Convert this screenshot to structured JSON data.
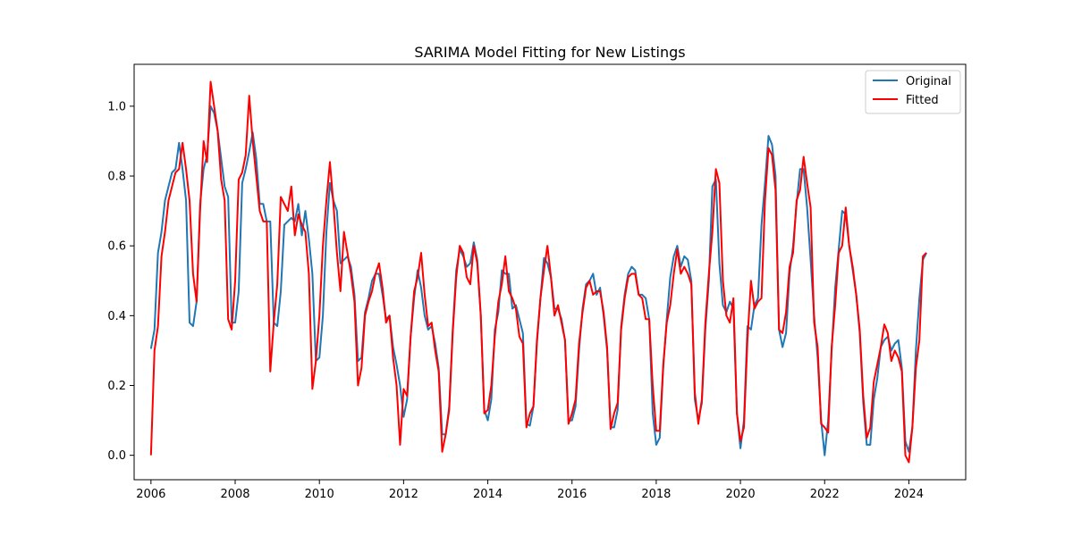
{
  "chart_data": {
    "type": "line",
    "title": "SARIMA Model Fitting for New Listings",
    "xlabel": "",
    "ylabel": "",
    "x_start": "2006-01",
    "x_end": "2024-06",
    "xlim": [
      2005.6,
      2025.35
    ],
    "ylim": [
      -0.07,
      1.12
    ],
    "x_ticks": [
      2006,
      2008,
      2010,
      2012,
      2014,
      2016,
      2018,
      2020,
      2022,
      2024
    ],
    "x_tick_labels": [
      "2006",
      "2008",
      "2010",
      "2012",
      "2014",
      "2016",
      "2018",
      "2020",
      "2022",
      "2024"
    ],
    "y_ticks": [
      0.0,
      0.2,
      0.4,
      0.6,
      0.8,
      1.0
    ],
    "y_tick_labels": [
      "0.0",
      "0.2",
      "0.4",
      "0.6",
      "0.8",
      "1.0"
    ],
    "grid": false,
    "legend_position": "top-right",
    "series": [
      {
        "name": "Original",
        "color": "#1f77b4",
        "values": [
          0.305,
          0.36,
          0.58,
          0.64,
          0.73,
          0.77,
          0.81,
          0.82,
          0.895,
          0.82,
          0.73,
          0.38,
          0.37,
          0.44,
          0.72,
          0.82,
          0.86,
          1.0,
          0.98,
          0.93,
          0.85,
          0.77,
          0.74,
          0.38,
          0.38,
          0.47,
          0.78,
          0.82,
          0.87,
          0.925,
          0.85,
          0.72,
          0.72,
          0.67,
          0.67,
          0.38,
          0.37,
          0.47,
          0.66,
          0.67,
          0.68,
          0.67,
          0.72,
          0.63,
          0.7,
          0.62,
          0.52,
          0.27,
          0.28,
          0.4,
          0.64,
          0.78,
          0.73,
          0.7,
          0.55,
          0.56,
          0.57,
          0.54,
          0.46,
          0.27,
          0.28,
          0.41,
          0.45,
          0.5,
          0.52,
          0.52,
          0.46,
          0.39,
          0.4,
          0.31,
          0.26,
          0.2,
          0.11,
          0.16,
          0.34,
          0.45,
          0.53,
          0.48,
          0.4,
          0.36,
          0.37,
          0.32,
          0.25,
          0.06,
          0.06,
          0.14,
          0.36,
          0.53,
          0.59,
          0.57,
          0.54,
          0.55,
          0.61,
          0.56,
          0.4,
          0.13,
          0.1,
          0.16,
          0.36,
          0.41,
          0.53,
          0.52,
          0.52,
          0.42,
          0.43,
          0.39,
          0.35,
          0.09,
          0.085,
          0.14,
          0.32,
          0.45,
          0.565,
          0.55,
          0.51,
          0.42,
          0.42,
          0.39,
          0.33,
          0.1,
          0.1,
          0.14,
          0.3,
          0.42,
          0.49,
          0.5,
          0.52,
          0.46,
          0.48,
          0.4,
          0.3,
          0.08,
          0.08,
          0.13,
          0.37,
          0.46,
          0.52,
          0.54,
          0.53,
          0.46,
          0.46,
          0.45,
          0.39,
          0.12,
          0.03,
          0.05,
          0.25,
          0.39,
          0.51,
          0.57,
          0.6,
          0.54,
          0.57,
          0.56,
          0.5,
          0.16,
          0.1,
          0.15,
          0.36,
          0.5,
          0.77,
          0.79,
          0.55,
          0.43,
          0.41,
          0.44,
          0.42,
          0.12,
          0.02,
          0.1,
          0.37,
          0.36,
          0.43,
          0.45,
          0.66,
          0.78,
          0.915,
          0.89,
          0.8,
          0.36,
          0.31,
          0.35,
          0.52,
          0.6,
          0.72,
          0.82,
          0.82,
          0.71,
          0.56,
          0.4,
          0.28,
          0.1,
          0.0,
          0.1,
          0.3,
          0.48,
          0.59,
          0.7,
          0.69,
          0.6,
          0.53,
          0.46,
          0.35,
          0.15,
          0.03,
          0.03,
          0.16,
          0.22,
          0.31,
          0.33,
          0.34,
          0.3,
          0.32,
          0.33,
          0.25,
          0.04,
          0.01,
          0.08,
          0.3,
          0.45,
          0.56,
          0.58
        ]
      },
      {
        "name": "Fitted",
        "color": "#ff0000",
        "values": [
          0.0,
          0.3,
          0.37,
          0.57,
          0.64,
          0.73,
          0.77,
          0.81,
          0.82,
          0.895,
          0.82,
          0.73,
          0.52,
          0.44,
          0.7,
          0.9,
          0.84,
          1.07,
          1.0,
          0.93,
          0.79,
          0.73,
          0.39,
          0.36,
          0.5,
          0.79,
          0.81,
          0.86,
          1.03,
          0.9,
          0.8,
          0.7,
          0.67,
          0.67,
          0.24,
          0.38,
          0.49,
          0.74,
          0.72,
          0.7,
          0.77,
          0.63,
          0.69,
          0.66,
          0.64,
          0.52,
          0.19,
          0.27,
          0.4,
          0.6,
          0.73,
          0.84,
          0.72,
          0.58,
          0.47,
          0.64,
          0.58,
          0.52,
          0.44,
          0.2,
          0.25,
          0.4,
          0.44,
          0.47,
          0.52,
          0.55,
          0.48,
          0.38,
          0.4,
          0.28,
          0.2,
          0.03,
          0.19,
          0.17,
          0.34,
          0.47,
          0.51,
          0.58,
          0.46,
          0.37,
          0.38,
          0.3,
          0.24,
          0.01,
          0.06,
          0.13,
          0.35,
          0.51,
          0.6,
          0.58,
          0.51,
          0.49,
          0.6,
          0.55,
          0.4,
          0.12,
          0.13,
          0.2,
          0.34,
          0.44,
          0.49,
          0.57,
          0.47,
          0.45,
          0.42,
          0.34,
          0.32,
          0.08,
          0.12,
          0.14,
          0.33,
          0.45,
          0.53,
          0.6,
          0.51,
          0.4,
          0.43,
          0.38,
          0.33,
          0.09,
          0.12,
          0.16,
          0.32,
          0.41,
          0.48,
          0.5,
          0.46,
          0.47,
          0.47,
          0.41,
          0.31,
          0.075,
          0.12,
          0.15,
          0.36,
          0.45,
          0.51,
          0.52,
          0.52,
          0.46,
          0.45,
          0.39,
          0.39,
          0.2,
          0.07,
          0.07,
          0.26,
          0.38,
          0.43,
          0.52,
          0.59,
          0.52,
          0.54,
          0.52,
          0.49,
          0.18,
          0.09,
          0.16,
          0.38,
          0.52,
          0.64,
          0.82,
          0.78,
          0.5,
          0.4,
          0.38,
          0.45,
          0.12,
          0.04,
          0.08,
          0.33,
          0.5,
          0.42,
          0.44,
          0.45,
          0.73,
          0.88,
          0.86,
          0.76,
          0.36,
          0.35,
          0.41,
          0.54,
          0.58,
          0.73,
          0.76,
          0.855,
          0.78,
          0.71,
          0.38,
          0.31,
          0.09,
          0.08,
          0.065,
          0.31,
          0.43,
          0.58,
          0.6,
          0.71,
          0.6,
          0.54,
          0.46,
          0.36,
          0.17,
          0.05,
          0.08,
          0.21,
          0.26,
          0.31,
          0.375,
          0.35,
          0.27,
          0.3,
          0.28,
          0.24,
          0.0,
          -0.02,
          0.08,
          0.25,
          0.33,
          0.57,
          0.58
        ]
      }
    ]
  }
}
